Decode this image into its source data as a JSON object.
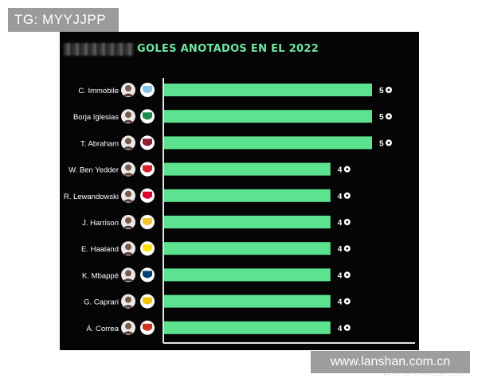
{
  "watermark_top": "TG: MYYJJPP",
  "watermark_source": "百家号/老球迷爱吐槽",
  "watermark_site": "www.lanshan.com.cn",
  "colors": {
    "bar": "#5de390",
    "background": "#050505",
    "title": "#6ee7a0"
  },
  "chart_data": {
    "type": "bar",
    "orientation": "horizontal",
    "title": "GOLES ANOTADOS EN EL 2022",
    "xlabel": "",
    "ylabel": "",
    "xlim": [
      0,
      5
    ],
    "grid": false,
    "value_icon": "soccer-ball-icon",
    "categories": [
      "C. Immobile",
      "Borja Iglesias",
      "T. Abraham",
      "W. Ben Yedder",
      "R. Lewandowski",
      "J. Harrison",
      "E. Haaland",
      "K. Mbappé",
      "G. Caprari",
      "Á. Correa"
    ],
    "values": [
      5,
      5,
      5,
      4,
      4,
      4,
      4,
      4,
      4,
      4
    ],
    "clubs": [
      {
        "name": "Lazio",
        "icon": "lazio-crest-icon",
        "color": "#87c3e8"
      },
      {
        "name": "Real Betis",
        "icon": "betis-crest-icon",
        "color": "#1e8a4a"
      },
      {
        "name": "Roma",
        "icon": "roma-crest-icon",
        "color": "#8e1f2f"
      },
      {
        "name": "Monaco",
        "icon": "monaco-crest-icon",
        "color": "#d6202c"
      },
      {
        "name": "Bayern",
        "icon": "bayern-crest-icon",
        "color": "#dc052d"
      },
      {
        "name": "Leeds",
        "icon": "leeds-crest-icon",
        "color": "#f4c430"
      },
      {
        "name": "Dortmund",
        "icon": "dortmund-crest-icon",
        "color": "#fde100"
      },
      {
        "name": "PSG",
        "icon": "psg-crest-icon",
        "color": "#004170"
      },
      {
        "name": "Verona",
        "icon": "verona-crest-icon",
        "color": "#f5c400"
      },
      {
        "name": "Atlético",
        "icon": "atletico-crest-icon",
        "color": "#cb3524"
      }
    ]
  }
}
